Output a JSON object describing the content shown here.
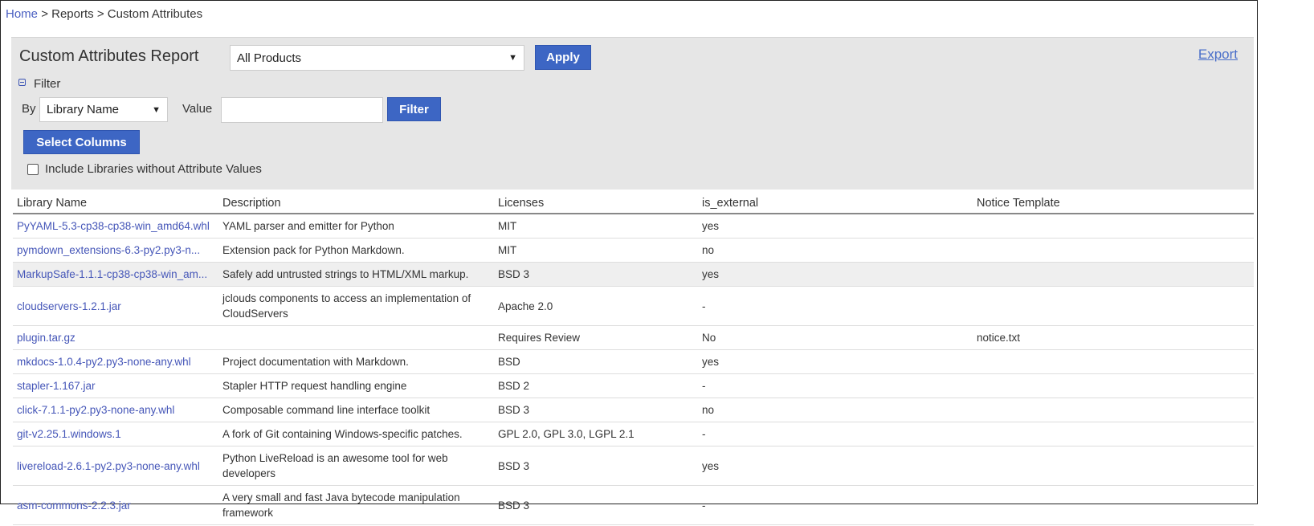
{
  "breadcrumb": {
    "home": "Home",
    "sep": ">",
    "reports": "Reports",
    "current": "Custom Attributes"
  },
  "header": {
    "title": "Custom Attributes Report",
    "product_select": "All Products",
    "apply": "Apply",
    "export": "Export"
  },
  "filter": {
    "toggle_label": "Filter",
    "by_label": "By",
    "by_select": "Library Name",
    "value_label": "Value",
    "value": "",
    "filter_button": "Filter"
  },
  "select_columns": "Select Columns",
  "include_checkbox": {
    "label": "Include Libraries without Attribute Values",
    "checked": false
  },
  "colors": {
    "accent": "#3d66c4",
    "link": "#4556b8",
    "panel": "#e6e6e6"
  },
  "table": {
    "columns": [
      "Library Name",
      "Description",
      "Licenses",
      "is_external",
      "Notice Template"
    ],
    "rows": [
      [
        "PyYAML-5.3-cp38-cp38-win_amd64.whl",
        "YAML parser and emitter for Python",
        "MIT",
        "yes",
        ""
      ],
      [
        "pymdown_extensions-6.3-py2.py3-n...",
        "Extension pack for Python Markdown.",
        "MIT",
        "no",
        ""
      ],
      [
        "MarkupSafe-1.1.1-cp38-cp38-win_am...",
        "Safely add untrusted strings to HTML/XML markup.",
        "BSD 3",
        "yes",
        ""
      ],
      [
        "cloudservers-1.2.1.jar",
        "jclouds components to access an implementation of CloudServers",
        "Apache 2.0",
        "-",
        ""
      ],
      [
        "plugin.tar.gz",
        "",
        "Requires Review",
        "No",
        "notice.txt"
      ],
      [
        "mkdocs-1.0.4-py2.py3-none-any.whl",
        "Project documentation with Markdown.",
        "BSD",
        "yes",
        ""
      ],
      [
        "stapler-1.167.jar",
        "Stapler HTTP request handling engine",
        "BSD 2",
        "-",
        ""
      ],
      [
        "click-7.1.1-py2.py3-none-any.whl",
        "Composable command line interface toolkit",
        "BSD 3",
        "no",
        ""
      ],
      [
        "git-v2.25.1.windows.1",
        "A fork of Git containing Windows-specific patches.",
        "GPL 2.0, GPL 3.0, LGPL 2.1",
        "-",
        ""
      ],
      [
        "livereload-2.6.1-py2.py3-none-any.whl",
        "Python LiveReload is an awesome tool for web developers",
        "BSD 3",
        "yes",
        ""
      ],
      [
        "asm-commons-2.2.3.jar",
        "A very small and fast Java bytecode manipulation framework",
        "BSD 3",
        "-",
        ""
      ]
    ]
  }
}
